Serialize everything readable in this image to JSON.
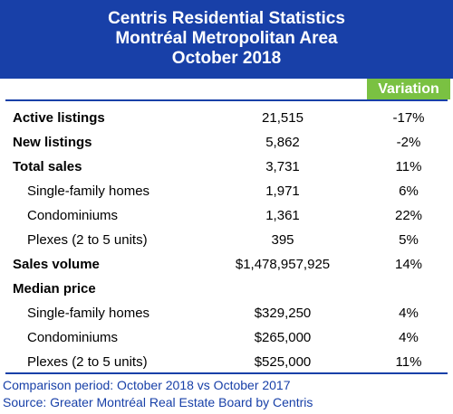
{
  "chart_data": {
    "type": "table",
    "title": [
      "Centris Residential Statistics",
      "Montréal Metropolitan Area",
      "October 2018"
    ],
    "columns": [
      "",
      "",
      "Variation"
    ],
    "rows": [
      {
        "label": "Active listings",
        "value": "21,515",
        "variation": "-17%",
        "level": "main"
      },
      {
        "label": "New listings",
        "value": "5,862",
        "variation": "-2%",
        "level": "main"
      },
      {
        "label": "Total sales",
        "value": "3,731",
        "variation": "11%",
        "level": "main"
      },
      {
        "label": "Single-family homes",
        "value": "1,971",
        "variation": "6%",
        "level": "sub"
      },
      {
        "label": "Condominiums",
        "value": "1,361",
        "variation": "22%",
        "level": "sub"
      },
      {
        "label": "Plexes (2 to 5 units)",
        "value": "395",
        "variation": "5%",
        "level": "sub"
      },
      {
        "label": "Sales volume",
        "value": "$1,478,957,925",
        "variation": "14%",
        "level": "main"
      },
      {
        "label": "Median price",
        "value": "",
        "variation": "",
        "level": "main"
      },
      {
        "label": "Single-family homes",
        "value": "$329,250",
        "variation": "4%",
        "level": "sub"
      },
      {
        "label": "Condominiums",
        "value": "$265,000",
        "variation": "4%",
        "level": "sub"
      },
      {
        "label": "Plexes (2 to 5 units)",
        "value": "$525,000",
        "variation": "11%",
        "level": "sub"
      }
    ],
    "footnotes": [
      "Comparison period: October 2018 vs October 2017",
      "Source: Greater Montréal Real Estate Board by Centris"
    ]
  },
  "colors": {
    "header_bg": "#1840a8",
    "variation_bg": "#7ac142",
    "footnote": "#1840a8"
  }
}
